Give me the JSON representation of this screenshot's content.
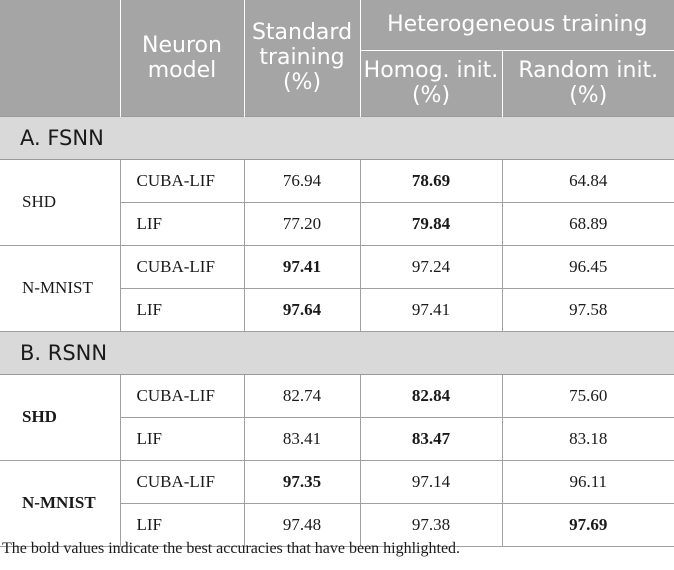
{
  "header": {
    "neuron_model": "Neuron model",
    "standard_training": "Standard training (%)",
    "heterogeneous_training": "Heterogeneous training",
    "homog_init": "Homog. init. (%)",
    "random_init": "Random init. (%)"
  },
  "sections": [
    {
      "title": "A. FSNN",
      "groups": [
        {
          "dataset": "SHD",
          "dataset_bold": false,
          "rows": [
            {
              "model": "CUBA-LIF",
              "standard": "76.94",
              "homog": "78.69",
              "random": "64.84",
              "bold": "homog"
            },
            {
              "model": "LIF",
              "standard": "77.20",
              "homog": "79.84",
              "random": "68.89",
              "bold": "homog"
            }
          ]
        },
        {
          "dataset": "N-MNIST",
          "dataset_bold": false,
          "rows": [
            {
              "model": "CUBA-LIF",
              "standard": "97.41",
              "homog": "97.24",
              "random": "96.45",
              "bold": "standard"
            },
            {
              "model": "LIF",
              "standard": "97.64",
              "homog": "97.41",
              "random": "97.58",
              "bold": "standard"
            }
          ]
        }
      ]
    },
    {
      "title": "B. RSNN",
      "groups": [
        {
          "dataset": "SHD",
          "dataset_bold": true,
          "rows": [
            {
              "model": "CUBA-LIF",
              "standard": "82.74",
              "homog": "82.84",
              "random": "75.60",
              "bold": "homog"
            },
            {
              "model": "LIF",
              "standard": "83.41",
              "homog": "83.47",
              "random": "83.18",
              "bold": "homog"
            }
          ]
        },
        {
          "dataset": "N-MNIST",
          "dataset_bold": true,
          "rows": [
            {
              "model": "CUBA-LIF",
              "standard": "97.35",
              "homog": "97.14",
              "random": "96.11",
              "bold": "standard"
            },
            {
              "model": "LIF",
              "standard": "97.48",
              "homog": "97.38",
              "random": "97.69",
              "bold": "random"
            }
          ]
        }
      ]
    }
  ],
  "footnote": "The bold values indicate the best accuracies that have been highlighted."
}
